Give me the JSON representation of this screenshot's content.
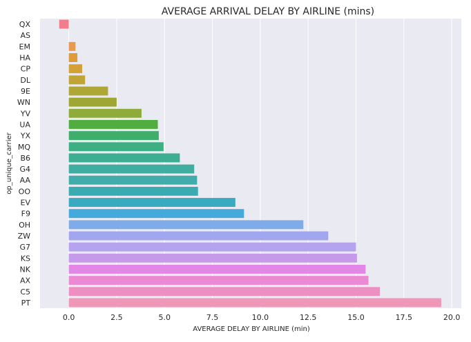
{
  "chart_data": {
    "type": "bar",
    "orientation": "horizontal",
    "title": "AVERAGE ARRIVAL DELAY BY AIRLINE (mins)",
    "xlabel": "AVERAGE DELAY BY AIRLINE (min)",
    "ylabel": "op_unique_carrier",
    "xlim": [
      -1.5,
      20.5
    ],
    "xticks": [
      "0.0",
      "2.5",
      "5.0",
      "7.5",
      "10.0",
      "12.5",
      "15.0",
      "17.5",
      "20.0"
    ],
    "grid": true,
    "categories": [
      "QX",
      "AS",
      "EM",
      "HA",
      "CP",
      "DL",
      "9E",
      "WN",
      "YV",
      "UA",
      "YX",
      "MQ",
      "B6",
      "G4",
      "AA",
      "OO",
      "EV",
      "F9",
      "OH",
      "ZW",
      "G7",
      "KS",
      "NK",
      "AX",
      "C5",
      "PT"
    ],
    "values": [
      -0.5,
      0.0,
      0.35,
      0.45,
      0.7,
      0.85,
      2.05,
      2.5,
      3.8,
      4.65,
      4.7,
      4.95,
      5.8,
      6.55,
      6.7,
      6.75,
      8.7,
      9.15,
      12.25,
      13.55,
      15.0,
      15.05,
      15.5,
      15.65,
      16.25,
      19.45
    ],
    "colors": [
      "#f37b8c",
      "#f2827a",
      "#e99a4f",
      "#dd9b3b",
      "#d3a136",
      "#c0a435",
      "#aea635",
      "#9ea734",
      "#8fab3a",
      "#52ad41",
      "#3eae6a",
      "#3daf83",
      "#3eae92",
      "#3fad9f",
      "#41acaa",
      "#3aacb1",
      "#39aac0",
      "#46a9dc",
      "#80abe9",
      "#a1a6ee",
      "#b6a3ee",
      "#c59be9",
      "#e287e6",
      "#ec89d3",
      "#ee8fc2",
      "#ee97b6"
    ]
  }
}
